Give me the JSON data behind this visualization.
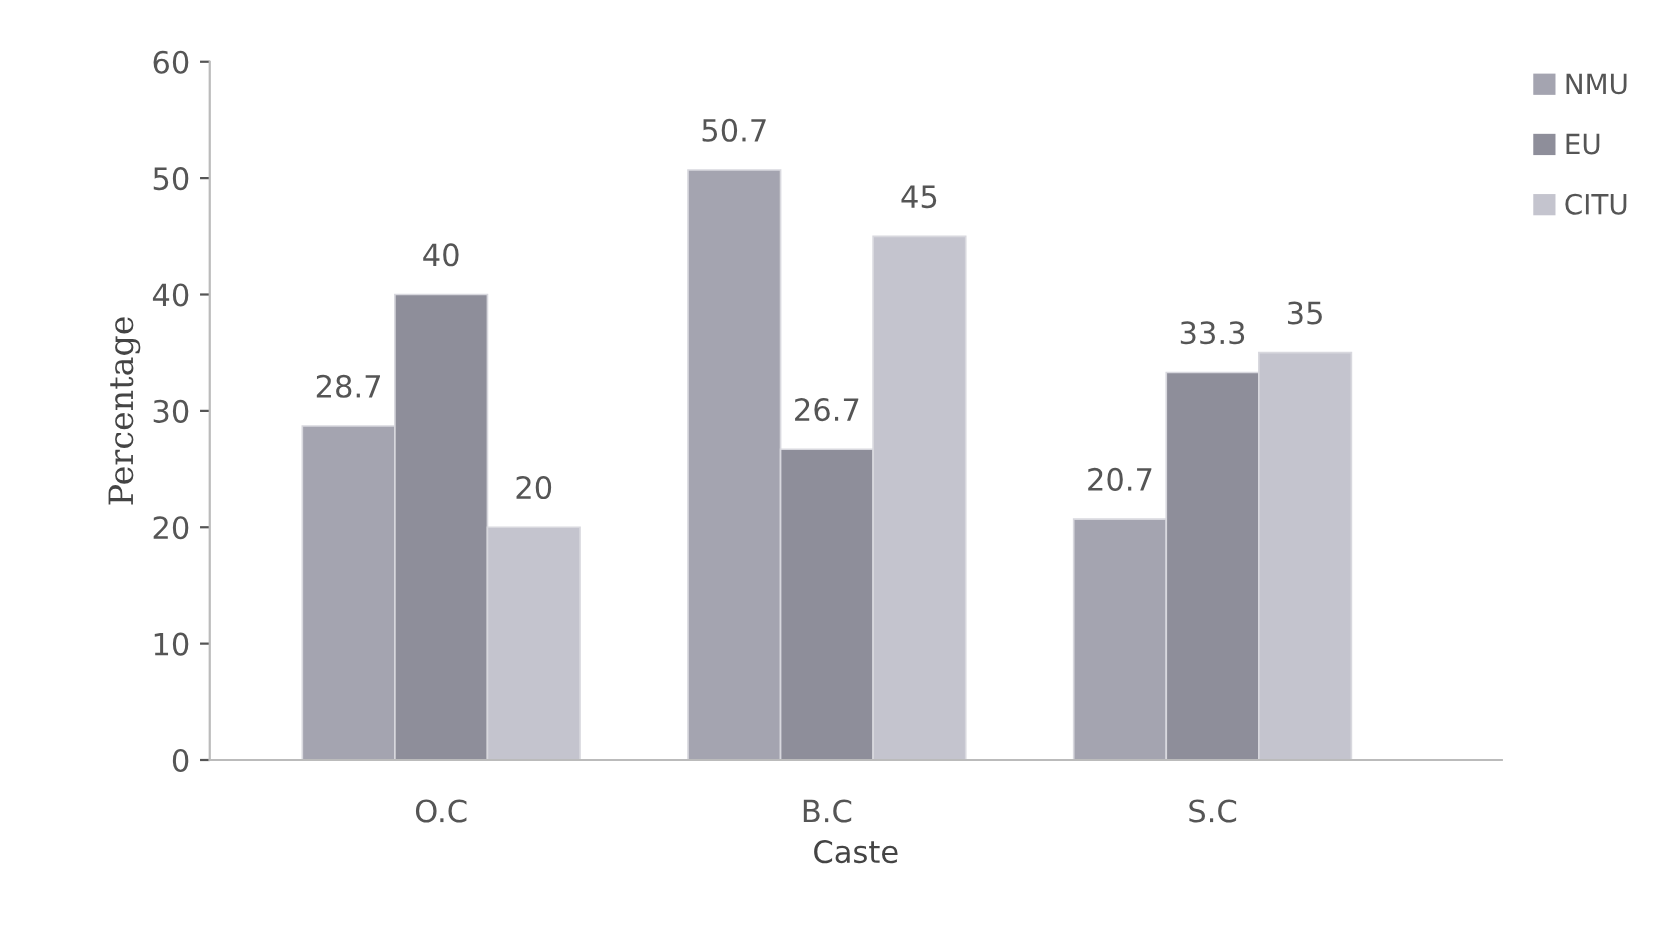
{
  "chart_data": {
    "type": "bar",
    "xlabel": "Caste",
    "ylabel": "Percentage",
    "categories": [
      "O.C",
      "B.C",
      "S.C"
    ],
    "series": [
      {
        "name": "NMU",
        "color": "#a4a4b0",
        "values": [
          28.7,
          50.7,
          20.7
        ]
      },
      {
        "name": "EU",
        "color": "#8e8e9a",
        "values": [
          40,
          26.7,
          33.3
        ]
      },
      {
        "name": "CITU",
        "color": "#c4c4ce",
        "values": [
          20,
          45,
          35
        ]
      }
    ],
    "ylim": [
      0,
      60
    ],
    "yticks": [
      0,
      10,
      20,
      30,
      40,
      50,
      60
    ],
    "grid": false,
    "legend": "top right",
    "data_labels": true
  }
}
